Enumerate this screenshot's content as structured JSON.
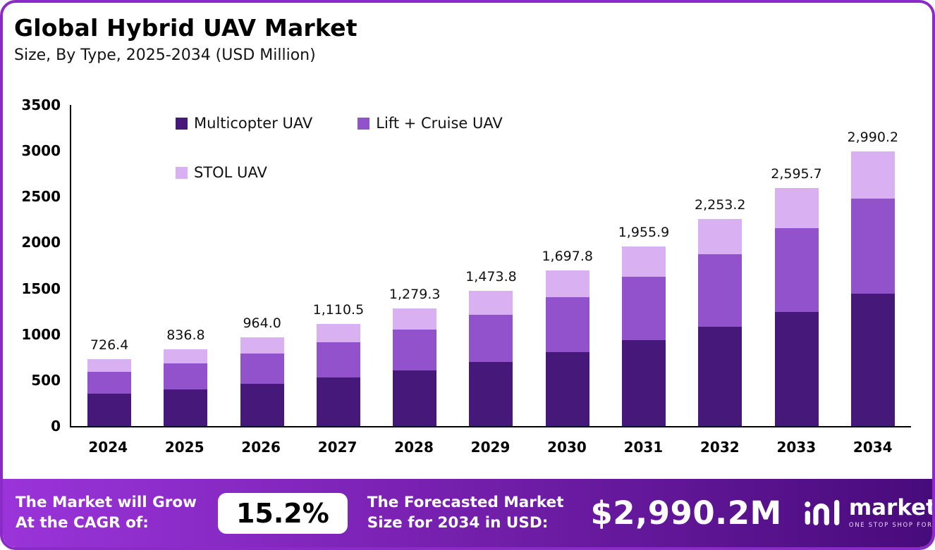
{
  "header": {
    "title": "Global Hybrid UAV Market",
    "subtitle": "Size, By Type, 2025-2034 (USD Million)"
  },
  "chart_data": {
    "type": "bar",
    "stacked": true,
    "categories": [
      "2024",
      "2025",
      "2026",
      "2027",
      "2028",
      "2029",
      "2030",
      "2031",
      "2032",
      "2033",
      "2034"
    ],
    "series": [
      {
        "name": "Multicopter UAV",
        "color": "#45187a",
        "values": [
          350,
          400,
          460,
          530,
          610,
          700,
          805,
          935,
          1080,
          1245,
          1440
        ]
      },
      {
        "name": "Lift + Cruise UAV",
        "color": "#9152cc",
        "values": [
          240,
          285,
          330,
          385,
          445,
          515,
          600,
          690,
          790,
          910,
          1040
        ]
      },
      {
        "name": "STOL UAV",
        "color": "#d9b0f2",
        "values": [
          136.4,
          151.8,
          174.0,
          195.5,
          224.3,
          258.8,
          292.8,
          330.9,
          383.2,
          440.7,
          510.2
        ]
      }
    ],
    "totals": [
      726.4,
      836.8,
      964.0,
      1110.5,
      1279.3,
      1473.8,
      1697.8,
      1955.9,
      2253.2,
      2595.7,
      2990.2
    ],
    "totals_display": [
      "726.4",
      "836.8",
      "964.0",
      "1,110.5",
      "1,279.3",
      "1,473.8",
      "1,697.8",
      "1,955.9",
      "2,253.2",
      "2,595.7",
      "2,990.2"
    ],
    "title": "Global Hybrid UAV Market",
    "xlabel": "",
    "ylabel": "",
    "ylim": [
      0,
      3500
    ],
    "yticks": [
      0,
      500,
      1000,
      1500,
      2000,
      2500,
      3000,
      3500
    ],
    "grid": false,
    "legend_position": "upper-left-inside"
  },
  "footer": {
    "grow_line1": "The Market will Grow",
    "grow_line2": "At the CAGR of:",
    "cagr": "15.2%",
    "forecast_line1": "The Forecasted Market",
    "forecast_line2": "Size for 2034 in USD:",
    "forecast_value": "$2,990.2M",
    "brand": "market.us",
    "tagline": "ONE STOP SHOP FOR THE REPORTS"
  },
  "colors": {
    "border": "#8b2ac6",
    "ribbon_left": "#9a34da",
    "ribbon_right": "#480b7b",
    "multicopter": "#45187a",
    "lift_cruise": "#9152cc",
    "stol": "#d9b0f2"
  }
}
